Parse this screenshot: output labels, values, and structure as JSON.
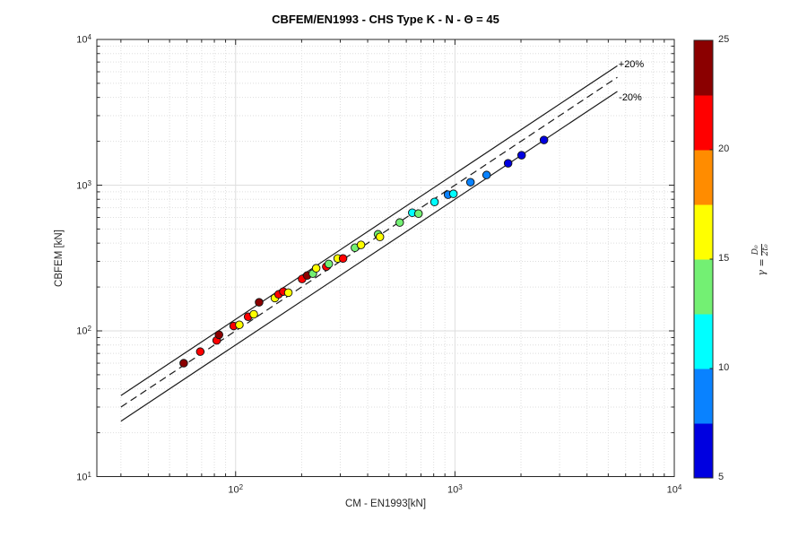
{
  "chart_data": {
    "type": "scatter",
    "title": "CBFEM/EN1993 - CHS Type K - N - Θ = 45",
    "xlabel": "CM - EN1993[kN]",
    "ylabel": "CBFEM [kN]",
    "x_scale": "log",
    "y_scale": "log",
    "xlim": [
      23.3,
      10000
    ],
    "ylim": [
      10,
      10000
    ],
    "x_tick_values": [
      100,
      1000,
      10000
    ],
    "y_tick_values": [
      10,
      100,
      1000,
      10000
    ],
    "grid": true,
    "minor_grid": true,
    "annotations": [
      {
        "text": "+20%"
      },
      {
        "text": "-20%"
      }
    ],
    "reference_lines": [
      {
        "name": "plus20",
        "factor": 1.2,
        "style": "solid",
        "x_range": [
          30,
          5500
        ]
      },
      {
        "name": "identity",
        "factor": 1.0,
        "style": "dashed",
        "x_range": [
          30,
          5500
        ]
      },
      {
        "name": "minus20",
        "factor": 0.8,
        "style": "solid",
        "x_range": [
          30,
          5500
        ]
      }
    ],
    "points": [
      {
        "x": 58,
        "y": 60,
        "gamma": 24
      },
      {
        "x": 69,
        "y": 72,
        "gamma": 21
      },
      {
        "x": 82,
        "y": 86,
        "gamma": 21
      },
      {
        "x": 84,
        "y": 94,
        "gamma": 24
      },
      {
        "x": 98,
        "y": 108,
        "gamma": 21
      },
      {
        "x": 104,
        "y": 110,
        "gamma": 16
      },
      {
        "x": 114,
        "y": 125,
        "gamma": 21
      },
      {
        "x": 121,
        "y": 130,
        "gamma": 16
      },
      {
        "x": 128,
        "y": 157,
        "gamma": 24
      },
      {
        "x": 151,
        "y": 168,
        "gamma": 16
      },
      {
        "x": 157,
        "y": 178,
        "gamma": 21
      },
      {
        "x": 165,
        "y": 186,
        "gamma": 21
      },
      {
        "x": 174,
        "y": 183,
        "gamma": 16
      },
      {
        "x": 201,
        "y": 227,
        "gamma": 21
      },
      {
        "x": 212,
        "y": 240,
        "gamma": 24
      },
      {
        "x": 225,
        "y": 247,
        "gamma": 14
      },
      {
        "x": 233,
        "y": 269,
        "gamma": 16
      },
      {
        "x": 259,
        "y": 276,
        "gamma": 21
      },
      {
        "x": 266,
        "y": 288,
        "gamma": 14
      },
      {
        "x": 292,
        "y": 314,
        "gamma": 16
      },
      {
        "x": 309,
        "y": 314,
        "gamma": 21
      },
      {
        "x": 350,
        "y": 372,
        "gamma": 14
      },
      {
        "x": 373,
        "y": 389,
        "gamma": 16
      },
      {
        "x": 446,
        "y": 460,
        "gamma": 14
      },
      {
        "x": 455,
        "y": 441,
        "gamma": 16
      },
      {
        "x": 560,
        "y": 554,
        "gamma": 14
      },
      {
        "x": 639,
        "y": 647,
        "gamma": 11
      },
      {
        "x": 682,
        "y": 638,
        "gamma": 13
      },
      {
        "x": 807,
        "y": 767,
        "gamma": 11
      },
      {
        "x": 930,
        "y": 860,
        "gamma": 9
      },
      {
        "x": 984,
        "y": 872,
        "gamma": 11
      },
      {
        "x": 1177,
        "y": 1048,
        "gamma": 9
      },
      {
        "x": 1394,
        "y": 1174,
        "gamma": 9
      },
      {
        "x": 1747,
        "y": 1412,
        "gamma": 6
      },
      {
        "x": 2013,
        "y": 1605,
        "gamma": 6
      },
      {
        "x": 2546,
        "y": 2042,
        "gamma": 6
      }
    ],
    "colorbar": {
      "min": 5,
      "max": 25,
      "ticks": [
        5,
        10,
        15,
        20,
        25
      ],
      "label_lhs": "γ =",
      "label_numerator": "D₀",
      "label_denominator": "2t₀",
      "segments": [
        {
          "from": 5.0,
          "to": 7.5,
          "color": "#0000E0"
        },
        {
          "from": 7.5,
          "to": 10.0,
          "color": "#0982FF"
        },
        {
          "from": 10.0,
          "to": 12.5,
          "color": "#00FFFF"
        },
        {
          "from": 12.5,
          "to": 15.0,
          "color": "#73F073"
        },
        {
          "from": 15.0,
          "to": 17.5,
          "color": "#FFFF00"
        },
        {
          "from": 17.5,
          "to": 20.0,
          "color": "#FF8C00"
        },
        {
          "from": 20.0,
          "to": 22.5,
          "color": "#FF0000"
        },
        {
          "from": 22.5,
          "to": 25.0,
          "color": "#8B0000"
        }
      ]
    },
    "line_color": "#1a1a1a",
    "marker_edge_color": "#111111",
    "grid_color": "#DEDEDE",
    "axis_color": "#262626"
  }
}
